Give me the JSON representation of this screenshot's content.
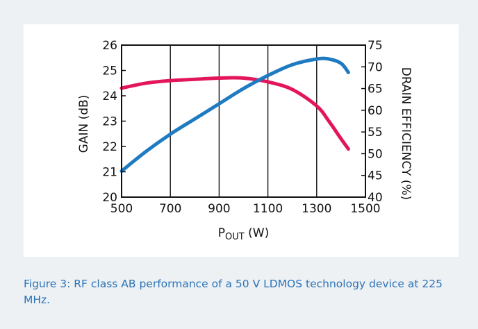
{
  "chart_data": {
    "type": "line",
    "xlabel_main": "P",
    "xlabel_sub": "OUT",
    "xlabel_unit": " (W)",
    "ylabel_left": "GAIN (dB)",
    "ylabel_right": "DRAIN EFFICIENCY (%)",
    "xlim": [
      500,
      1500
    ],
    "ylim_left": [
      20,
      26
    ],
    "ylim_right": [
      40,
      75
    ],
    "x_ticks": [
      "500",
      "700",
      "900",
      "1100",
      "1300",
      "1500"
    ],
    "y_left_ticks": [
      "20",
      "21",
      "22",
      "23",
      "24",
      "25",
      "26"
    ],
    "y_right_ticks": [
      "40",
      "45",
      "50",
      "55",
      "60",
      "65",
      "70",
      "75"
    ],
    "grid": "vertical",
    "series": [
      {
        "axis": "left",
        "color": "#e3165b",
        "x": [
          500,
          600,
          700,
          800,
          900,
          1000,
          1100,
          1200,
          1300,
          1350,
          1400,
          1430
        ],
        "y": [
          24.3,
          24.5,
          24.6,
          24.65,
          24.7,
          24.7,
          24.55,
          24.25,
          23.6,
          23.0,
          22.3,
          21.9
        ]
      },
      {
        "axis": "right",
        "color": "#1f7bc1",
        "x": [
          500,
          600,
          700,
          800,
          900,
          1000,
          1100,
          1200,
          1300,
          1350,
          1400,
          1430
        ],
        "y": [
          46,
          50.5,
          54.5,
          58,
          61.5,
          65,
          68,
          70.5,
          71.8,
          71.8,
          70.8,
          68.7
        ]
      }
    ]
  },
  "caption": "Figure 3: RF class AB performance of a 50 V LDMOS technology device at 225 MHz."
}
